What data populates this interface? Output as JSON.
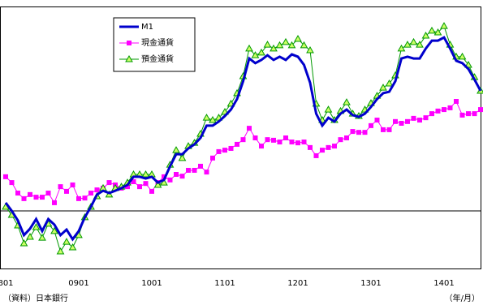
{
  "chart_data": {
    "type": "line",
    "categories": [
      "801",
      null,
      null,
      null,
      null,
      null,
      null,
      null,
      null,
      null,
      null,
      null,
      "0901",
      null,
      null,
      null,
      null,
      null,
      null,
      null,
      null,
      null,
      null,
      null,
      "1001",
      null,
      null,
      null,
      null,
      null,
      null,
      null,
      null,
      null,
      null,
      null,
      "1101",
      null,
      null,
      null,
      null,
      null,
      null,
      null,
      null,
      null,
      null,
      null,
      "1201",
      null,
      null,
      null,
      null,
      null,
      null,
      null,
      null,
      null,
      null,
      null,
      "1301",
      null,
      null,
      null,
      null,
      null,
      null,
      null,
      null,
      null,
      null,
      null,
      "1401",
      null,
      null,
      null,
      null,
      null,
      null
    ],
    "ylim": [
      -2,
      7
    ],
    "series": [
      {
        "name": "M1",
        "color": "#0000cc",
        "values": [
          0.28,
          0,
          -0.33,
          -0.83,
          -0.61,
          -0.28,
          -0.69,
          -0.28,
          -0.47,
          -0.83,
          -0.64,
          -0.97,
          -0.69,
          -0.22,
          0.14,
          0.56,
          0.69,
          0.61,
          0.69,
          0.78,
          0.89,
          1.17,
          1.17,
          1.11,
          1.17,
          0.97,
          1.06,
          1.53,
          1.94,
          1.94,
          2.14,
          2.28,
          2.5,
          2.92,
          2.92,
          3.06,
          3.25,
          3.47,
          3.83,
          4.44,
          5.22,
          5.06,
          5.17,
          5.33,
          5.17,
          5.28,
          5.17,
          5.36,
          5.28,
          5.0,
          4.39,
          3.33,
          2.92,
          3.19,
          3.06,
          3.33,
          3.47,
          3.28,
          3.22,
          3.33,
          3.56,
          3.83,
          4.03,
          4.08,
          4.44,
          5.22,
          5.28,
          5.22,
          5.22,
          5.56,
          5.83,
          5.83,
          5.94,
          5.56,
          5.14,
          5.06,
          4.86,
          4.5,
          4.11
        ]
      },
      {
        "name": "現金通貨",
        "color": "#ff00ff",
        "values": [
          1.17,
          0.97,
          0.61,
          0.42,
          0.56,
          0.47,
          0.47,
          0.61,
          0.28,
          0.83,
          0.67,
          0.89,
          0.42,
          0.44,
          0.61,
          0.72,
          0.78,
          0.97,
          0.89,
          0.78,
          0.83,
          1.0,
          0.83,
          0.94,
          0.67,
          0.97,
          1.17,
          1.06,
          1.25,
          1.19,
          1.39,
          1.39,
          1.53,
          1.33,
          1.81,
          2.03,
          2.08,
          2.14,
          2.28,
          2.44,
          2.83,
          2.5,
          2.22,
          2.44,
          2.42,
          2.36,
          2.5,
          2.36,
          2.33,
          2.36,
          2.17,
          1.89,
          2.08,
          2.17,
          2.22,
          2.44,
          2.5,
          2.72,
          2.69,
          2.69,
          2.92,
          3.11,
          2.78,
          2.78,
          3.06,
          3.0,
          3.06,
          3.17,
          3.11,
          3.19,
          3.33,
          3.42,
          3.47,
          3.53,
          3.75,
          3.28,
          3.33,
          3.33,
          3.47
        ]
      },
      {
        "name": "預金通貨",
        "color": "#009900",
        "values": [
          0.14,
          -0.14,
          -0.5,
          -1.11,
          -0.89,
          -0.56,
          -0.92,
          -0.44,
          -0.69,
          -1.39,
          -1.06,
          -1.25,
          -0.83,
          -0.22,
          0.14,
          0.5,
          0.78,
          0.56,
          0.78,
          0.83,
          0.97,
          1.25,
          1.25,
          1.25,
          1.25,
          0.89,
          0.97,
          1.58,
          2.08,
          1.81,
          2.22,
          2.33,
          2.64,
          3.19,
          3.11,
          3.19,
          3.39,
          3.67,
          4.03,
          4.61,
          5.56,
          5.33,
          5.42,
          5.69,
          5.56,
          5.67,
          5.78,
          5.67,
          5.89,
          5.67,
          5.5,
          3.67,
          3.11,
          3.47,
          3.11,
          3.42,
          3.72,
          3.33,
          3.25,
          3.47,
          3.69,
          3.94,
          4.22,
          4.36,
          4.64,
          5.56,
          5.69,
          5.78,
          5.69,
          6.0,
          6.17,
          6.11,
          6.33,
          5.69,
          5.28,
          5.28,
          5.0,
          4.58,
          4.11
        ]
      }
    ],
    "source": "（資料）日本銀行",
    "x_unit": "（年/月）"
  }
}
